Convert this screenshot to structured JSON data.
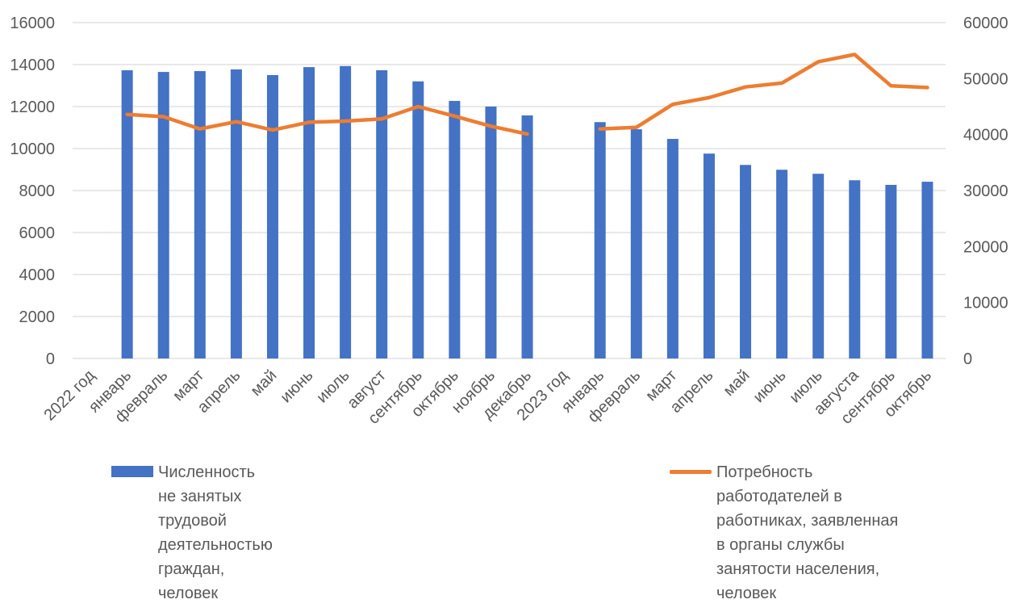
{
  "chart_data": {
    "type": "bar",
    "categories": [
      "2022 год",
      "январь",
      "февраль",
      "март",
      "апрель",
      "май",
      "июнь",
      "июль",
      "август",
      "сентябрь",
      "октябрь",
      "ноябрь",
      "декабрь",
      "2023 год",
      "январь",
      "февраль",
      "март",
      "апрель",
      "май",
      "июнь",
      "июль",
      "августа",
      "сентябрь",
      "октябрь"
    ],
    "series": [
      {
        "name": "Численность\nне занятых трудовой деятельностью граждан, человек",
        "type": "bar",
        "axis": "left",
        "color": "#4472C4",
        "values": [
          null,
          13730,
          13650,
          13690,
          13770,
          13500,
          13880,
          13930,
          13730,
          13200,
          12270,
          12000,
          11580,
          null,
          11260,
          10920,
          10460,
          9760,
          9220,
          8990,
          8800,
          8490,
          8270,
          8420
        ]
      },
      {
        "name": "Потребность работодателей в работниках, заявленная в органы службы занятости населения, человек",
        "type": "line",
        "axis": "right",
        "color": "#ED7D31",
        "values": [
          null,
          43600,
          43200,
          41000,
          42300,
          40800,
          42200,
          42400,
          42800,
          45000,
          43300,
          41500,
          40100,
          null,
          41000,
          41300,
          45400,
          46600,
          48500,
          49200,
          53000,
          54300,
          48700,
          48400
        ]
      }
    ],
    "y_left": {
      "ylim": [
        0,
        16000
      ],
      "ticks": [
        "0",
        "2000",
        "4000",
        "6000",
        "8000",
        "10000",
        "12000",
        "14000",
        "16000"
      ]
    },
    "y_right": {
      "ylim": [
        0,
        60000
      ],
      "ticks": [
        "0",
        "10000",
        "20000",
        "30000",
        "40000",
        "50000",
        "60000"
      ]
    },
    "grid": true,
    "legend_position": "bottom"
  },
  "legend": {
    "bar_label": "Численность\nне занятых трудовой деятельностью граждан, человек",
    "line_label": "Потребность\nработодателей в\nработниках, заявленная\nв органы службы\nзанятости населения,\nчеловек"
  }
}
